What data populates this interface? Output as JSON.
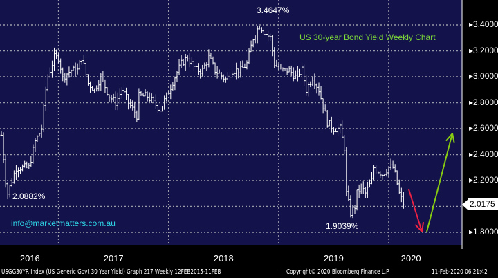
{
  "chart_data": {
    "type": "ohlc-bar",
    "title": "US 30-year Bond Yield Weekly Chart",
    "series_name": "USGG30YR Index",
    "ylim": [
      1.75,
      3.55
    ],
    "yticks": [
      1.8,
      2.0,
      2.2,
      2.4,
      2.6,
      2.8,
      3.0,
      3.2,
      3.4
    ],
    "ytick_labels": [
      "1.8000",
      "2.2000",
      "2.4000",
      "2.6000",
      "2.8000",
      "3.0000",
      "3.2000",
      "3.4000"
    ],
    "xlabels": [
      "2016",
      "2017",
      "2018",
      "2019",
      "2020"
    ],
    "year_boundaries_week": [
      27,
      79,
      131,
      183
    ],
    "total_weeks": 192,
    "weekly_close_keypoints": [
      [
        0,
        2.55
      ],
      [
        2,
        2.2
      ],
      [
        3,
        2.1
      ],
      [
        7,
        2.3
      ],
      [
        13,
        2.3
      ],
      [
        16,
        2.5
      ],
      [
        19,
        2.6
      ],
      [
        21,
        2.9
      ],
      [
        22,
        3.0
      ],
      [
        25,
        3.15
      ],
      [
        27,
        3.15
      ],
      [
        29,
        3.0
      ],
      [
        33,
        3.05
      ],
      [
        36,
        3.05
      ],
      [
        38,
        3.15
      ],
      [
        41,
        2.95
      ],
      [
        44,
        2.9
      ],
      [
        47,
        3.0
      ],
      [
        51,
        2.85
      ],
      [
        54,
        2.8
      ],
      [
        57,
        2.9
      ],
      [
        60,
        2.8
      ],
      [
        64,
        2.7
      ],
      [
        65,
        2.85
      ],
      [
        69,
        2.85
      ],
      [
        72,
        2.8
      ],
      [
        75,
        2.75
      ],
      [
        78,
        2.85
      ],
      [
        82,
        3.0
      ],
      [
        85,
        3.1
      ],
      [
        88,
        3.15
      ],
      [
        92,
        3.05
      ],
      [
        95,
        3.05
      ],
      [
        98,
        3.15
      ],
      [
        101,
        3.05
      ],
      [
        106,
        2.98
      ],
      [
        109,
        3.05
      ],
      [
        113,
        3.05
      ],
      [
        116,
        3.1
      ],
      [
        119,
        3.3
      ],
      [
        122,
        3.4
      ],
      [
        124,
        3.35
      ],
      [
        127,
        3.3
      ],
      [
        129,
        3.1
      ],
      [
        132,
        3.05
      ],
      [
        136,
        3.05
      ],
      [
        139,
        3.0
      ],
      [
        142,
        3.05
      ],
      [
        144,
        2.9
      ],
      [
        147,
        3.0
      ],
      [
        150,
        2.9
      ],
      [
        154,
        2.65
      ],
      [
        157,
        2.6
      ],
      [
        160,
        2.6
      ],
      [
        162,
        2.45
      ],
      [
        163,
        2.1
      ],
      [
        165,
        1.95
      ],
      [
        167,
        2.0
      ],
      [
        168,
        2.1
      ],
      [
        170,
        2.15
      ],
      [
        172,
        2.1
      ],
      [
        175,
        2.2
      ],
      [
        176,
        2.3
      ],
      [
        180,
        2.25
      ],
      [
        183,
        2.3
      ],
      [
        185,
        2.3
      ],
      [
        186,
        2.25
      ],
      [
        188,
        2.1
      ],
      [
        190,
        2.02
      ]
    ],
    "annotations": {
      "high": "3.4647%",
      "low_2016": "2.0882%",
      "low_2019": "1.9039%"
    },
    "last_value": "2.0175",
    "colors": {
      "background": "#13124a",
      "bars": "#ffffff",
      "grid": "#9a9aa8",
      "title": "#7fdc3a",
      "email": "#2fd8e8",
      "down_arrow": "#ee2244",
      "up_arrow": "#88cc11"
    }
  },
  "email": "info@marketmatters.com.au",
  "footer": {
    "index": "USGG30YR Index (US Generic Govt 30 Year Yield) Graph 217  Weekly 12FEB2015-11FEB",
    "copyright": "Copyright© 2020 Bloomberg Finance L.P.",
    "timestamp": "11-Feb-2020 06:21:42"
  }
}
